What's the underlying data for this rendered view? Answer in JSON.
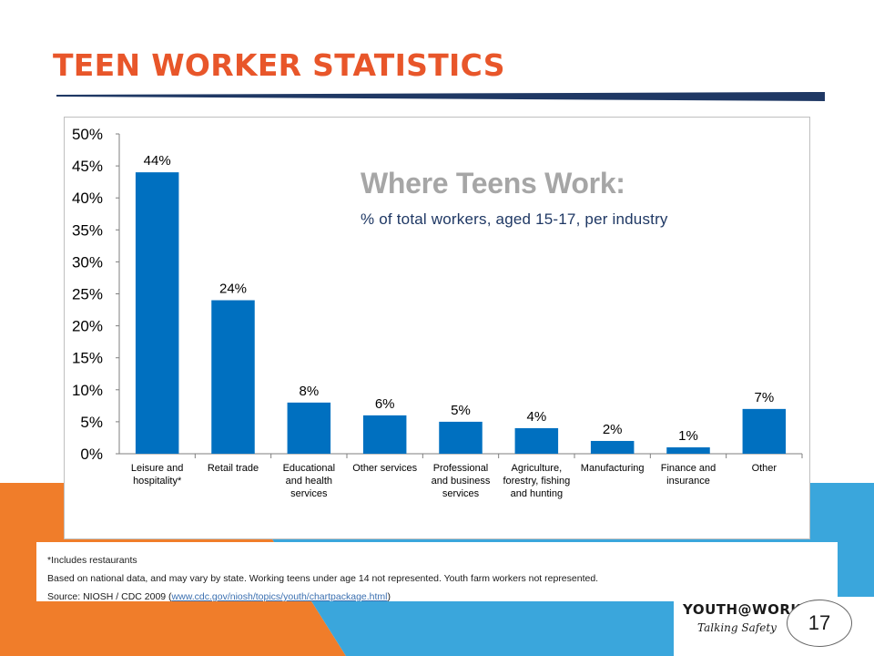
{
  "slide": {
    "title": "TEEN WORKER STATISTICS",
    "page_number": "17",
    "footnote_1": "*Includes restaurants",
    "footnote_2": "Based on national data, and may vary by state. Working teens under age 14 not represented. Youth farm workers not represented.",
    "source_prefix": "Source: NIOSH  / CDC 2009 (",
    "source_link": "www.cdc.gov/niosh/topics/youth/chartpackage.html",
    "source_suffix": ")",
    "logo_text": "YOUTH@WORK",
    "logo_tagline": "Talking Safety"
  },
  "colors": {
    "title": "#e8562a",
    "bar": "#0070c0",
    "rule": "#1f3864",
    "orange_bg": "#f07d2a",
    "blue_bg": "#3aa6dc"
  },
  "chart_data": {
    "type": "bar",
    "title": "Where Teens Work:",
    "subtitle": "% of total workers, aged 15-17, per industry",
    "categories": [
      [
        "Leisure and",
        "hospitality*"
      ],
      [
        "Retail trade"
      ],
      [
        "Educational",
        "and health",
        "services"
      ],
      [
        "Other services"
      ],
      [
        "Professional",
        "and business",
        "services"
      ],
      [
        "Agriculture,",
        "forestry, fishing",
        "and hunting"
      ],
      [
        "Manufacturing"
      ],
      [
        "Finance and",
        "insurance"
      ],
      [
        "Other"
      ]
    ],
    "values": [
      44,
      24,
      8,
      6,
      5,
      4,
      2,
      1,
      7
    ],
    "data_labels": [
      "44%",
      "24%",
      "8%",
      "6%",
      "5%",
      "4%",
      "2%",
      "1%",
      "7%"
    ],
    "ylim": [
      0,
      50
    ],
    "yticks": [
      "0%",
      "5%",
      "10%",
      "15%",
      "20%",
      "25%",
      "30%",
      "35%",
      "40%",
      "45%",
      "50%"
    ],
    "grid": false,
    "legend": "none"
  }
}
